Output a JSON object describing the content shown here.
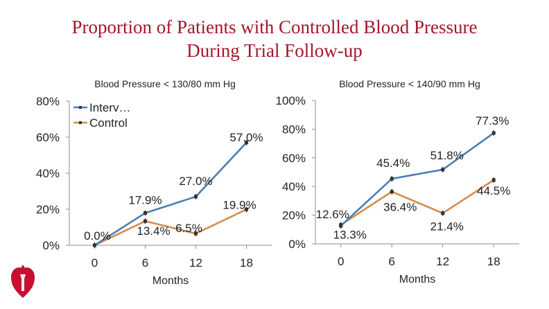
{
  "title": {
    "line1": "Proportion of Patients with Controlled Blood Pressure",
    "line2": "During Trial Follow-up"
  },
  "colors": {
    "title": "#a3162b",
    "intervention": "#4a7eb5",
    "control": "#d88a4a",
    "axis": "#8c8c8c",
    "logo": "#c8102e"
  },
  "logo": {
    "icon": "heart-torch-logo-icon"
  },
  "chart_data": [
    {
      "type": "line",
      "title": "Blood Pressure < 130/80 mm Hg",
      "xlabel": "Months",
      "ylabel": "",
      "x": [
        0,
        6,
        12,
        18
      ],
      "x_tick_labels": [
        "0",
        "6",
        "12",
        "18"
      ],
      "ylim": [
        0,
        80
      ],
      "y_tick_labels": [
        "0%",
        "20%",
        "40%",
        "60%",
        "80%"
      ],
      "legend_position": "top-left",
      "grid": false,
      "series": [
        {
          "name": "Interv…",
          "values": [
            0.0,
            17.9,
            27.0,
            57.0
          ],
          "labels": [
            "0.0%",
            "17.9%",
            "27.0%",
            "57.0%"
          ]
        },
        {
          "name": "Control",
          "values": [
            0.0,
            13.4,
            6.5,
            19.9
          ],
          "labels": [
            "",
            "13.4%",
            "6.5%",
            "19.9%"
          ]
        }
      ]
    },
    {
      "type": "line",
      "title": "Blood Pressure < 140/90 mm Hg",
      "xlabel": "Months",
      "ylabel": "",
      "x": [
        0,
        6,
        12,
        18
      ],
      "x_tick_labels": [
        "0",
        "6",
        "12",
        "18"
      ],
      "ylim": [
        0,
        100
      ],
      "y_tick_labels": [
        "0%",
        "20%",
        "40%",
        "60%",
        "80%",
        "100%"
      ],
      "grid": false,
      "series": [
        {
          "name": "Intervention",
          "values": [
            12.6,
            45.4,
            51.8,
            77.3
          ],
          "labels": [
            "12.6%",
            "45.4%",
            "51.8%",
            "77.3%"
          ]
        },
        {
          "name": "Control",
          "values": [
            13.3,
            36.4,
            21.4,
            44.5
          ],
          "labels": [
            "13.3%",
            "36.4%",
            "21.4%",
            "44.5%"
          ]
        }
      ]
    }
  ]
}
